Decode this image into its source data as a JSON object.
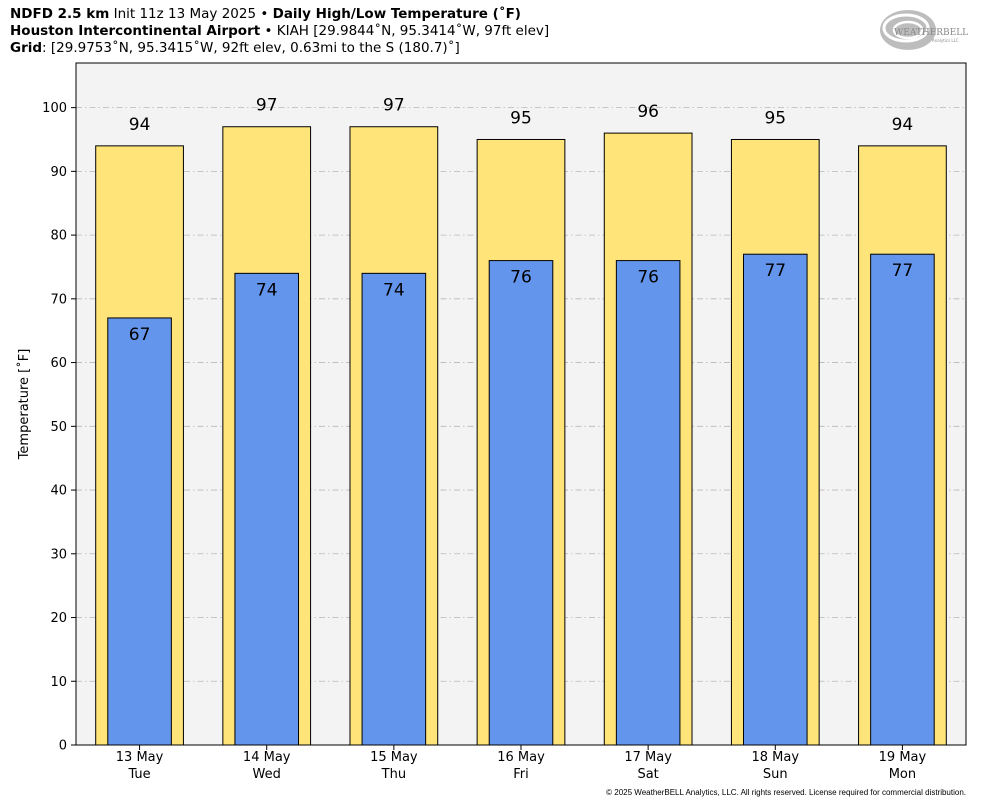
{
  "header": {
    "line1_bold": "NDFD 2.5 km",
    "line1_init": "Init 11z 13 May 2025",
    "line1_sep": " • ",
    "line1_title": "Daily High/Low Temperature (˚F)",
    "line2_bold": "Houston Intercontinental Airport",
    "line2_sep": " • ",
    "line2_rest": "KIAH [29.9844˚N, 95.3414˚W, 97ft elev]",
    "line3_bold": "Grid",
    "line3_rest": ": [29.9753˚N, 95.3415˚W, 92ft elev, 0.63mi to the S (180.7)˚]"
  },
  "logo": {
    "text_main": "WEATHERBELL",
    "text_sub": "Analytics LLC"
  },
  "copyright": "© 2025 WeatherBELL Analytics, LLC. All rights reserved. License required for commercial distribution.",
  "colors": {
    "high_bar": "#FFE47A",
    "low_bar": "#6495ED",
    "plot_bg": "#F4F3F4",
    "grid": "#B8B8B8"
  },
  "chart_data": {
    "type": "bar",
    "categories": [
      "13 May",
      "14 May",
      "15 May",
      "16 May",
      "17 May",
      "18 May",
      "19 May"
    ],
    "weekdays": [
      "Tue",
      "Wed",
      "Thu",
      "Fri",
      "Sat",
      "Sun",
      "Mon"
    ],
    "series": [
      {
        "name": "High",
        "values": [
          94,
          97,
          97,
          95,
          96,
          95,
          94
        ]
      },
      {
        "name": "Low",
        "values": [
          67,
          74,
          74,
          76,
          76,
          77,
          77
        ]
      }
    ],
    "ylabel": "Temperature [˚F]",
    "xlabel": "",
    "ylim": [
      0,
      107
    ],
    "yticks": [
      0,
      10,
      20,
      30,
      40,
      50,
      60,
      70,
      80,
      90,
      100
    ],
    "grid": true
  }
}
